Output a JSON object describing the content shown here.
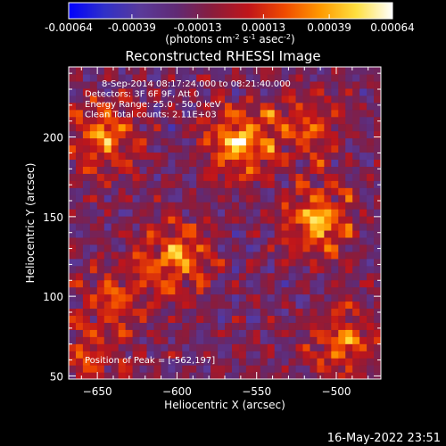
{
  "chart_data": {
    "type": "heatmap",
    "title": "Reconstructed RHESSI Image",
    "xlabel": "Heliocentric X (arcsec)",
    "ylabel": "Heliocentric Y (arcsec)",
    "xlim": [
      -668,
      -472
    ],
    "ylim": [
      48,
      244
    ],
    "x_ticks": [
      -650,
      -600,
      -550,
      -500
    ],
    "y_ticks": [
      50,
      100,
      150,
      200
    ],
    "colorbar": {
      "range": [
        -0.00064,
        0.00064
      ],
      "tick_values": [
        -0.00064,
        -0.00039,
        -0.00013,
        0.00013,
        0.00039,
        0.00064
      ],
      "tick_labels": [
        "-0.00064",
        "-0.00039",
        "-0.00013",
        "0.00013",
        "0.00039",
        "0.00064"
      ],
      "unit_prefix": "(photons cm",
      "unit_exp1": "-2",
      "unit_mid": " s",
      "unit_exp2": "-1",
      "unit_mid2": " asec",
      "unit_exp3": "-2",
      "unit_suffix": ")",
      "colors": [
        "#0000ff",
        "#3030c8",
        "#5a3a9a",
        "#602a74",
        "#8a1c3c",
        "#c0151a",
        "#f04a00",
        "#ff9a00",
        "#ffe040",
        "#ffffff"
      ]
    },
    "annotations": [
      "8-Sep-2014 08:17:24.000 to 08:21:40.000",
      "Detectors: 3F 6F 9F, Att 0",
      "Energy Range: 25.0 - 50.0 keV",
      "Clean     Total counts: 2.11E+03"
    ],
    "peak_label": "Position of Peak = [-562,197]",
    "peak": [
      -562,
      197
    ],
    "sources": [
      {
        "x": -562,
        "y": 197,
        "amp": 1.0
      },
      {
        "x": -512,
        "y": 148,
        "amp": 0.95
      },
      {
        "x": -600,
        "y": 125,
        "amp": 0.85
      },
      {
        "x": -645,
        "y": 200,
        "amp": 0.75
      },
      {
        "x": -495,
        "y": 72,
        "amp": 0.7
      },
      {
        "x": -640,
        "y": 100,
        "amp": 0.55
      },
      {
        "x": -520,
        "y": 205,
        "amp": 0.6
      },
      {
        "x": -655,
        "y": 60,
        "amp": 0.5
      }
    ],
    "grid": false
  },
  "timestamp": "16-May-2022 23:51"
}
